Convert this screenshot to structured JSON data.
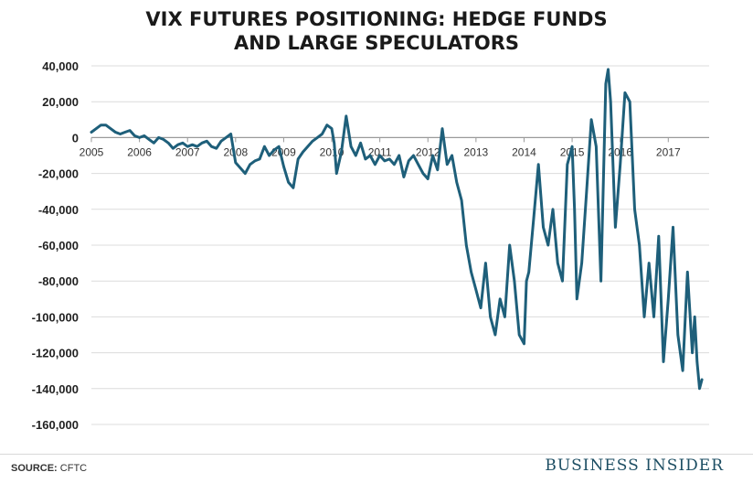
{
  "chart_data": {
    "type": "line",
    "title": [
      "VIX FUTURES POSITIONING: HEDGE FUNDS",
      "AND LARGE SPECULATORS"
    ],
    "xlabel": "",
    "ylabel": "",
    "xlim": [
      2005.0,
      2017.85
    ],
    "ylim": [
      -160000,
      40000
    ],
    "x_ticks": [
      "2005",
      "2006",
      "2007",
      "2008",
      "2009",
      "2010",
      "2011",
      "2012",
      "2013",
      "2014",
      "2015",
      "2016",
      "2017"
    ],
    "y_ticks": [
      "40,000",
      "20,000",
      "0",
      "-20,000",
      "-40,000",
      "-60,000",
      "-80,000",
      "-100,000",
      "-120,000",
      "-140,000",
      "-160,000"
    ],
    "grid": true,
    "line_color": "#1e5f7a",
    "series": [
      {
        "x": [
          2005.0,
          2005.1,
          2005.2,
          2005.3,
          2005.4,
          2005.5,
          2005.6,
          2005.7,
          2005.8,
          2005.9,
          2006.0,
          2006.1,
          2006.2,
          2006.3,
          2006.4,
          2006.5,
          2006.6,
          2006.7,
          2006.8,
          2006.9,
          2007.0,
          2007.1,
          2007.2,
          2007.3,
          2007.4,
          2007.5,
          2007.6,
          2007.7,
          2007.8,
          2007.9,
          2008.0,
          2008.1,
          2008.2,
          2008.3,
          2008.4,
          2008.5,
          2008.6,
          2008.7,
          2008.8,
          2008.9,
          2009.0,
          2009.1,
          2009.2,
          2009.3,
          2009.4,
          2009.5,
          2009.6,
          2009.7,
          2009.8,
          2009.9,
          2010.0,
          2010.05,
          2010.1,
          2010.2,
          2010.3,
          2010.4,
          2010.5,
          2010.6,
          2010.7,
          2010.8,
          2010.9,
          2011.0,
          2011.1,
          2011.2,
          2011.3,
          2011.4,
          2011.5,
          2011.6,
          2011.7,
          2011.8,
          2011.9,
          2012.0,
          2012.1,
          2012.2,
          2012.3,
          2012.4,
          2012.5,
          2012.6,
          2012.7,
          2012.8,
          2012.9,
          2013.0,
          2013.1,
          2013.2,
          2013.3,
          2013.4,
          2013.5,
          2013.6,
          2013.7,
          2013.8,
          2013.9,
          2014.0,
          2014.05,
          2014.1,
          2014.2,
          2014.3,
          2014.4,
          2014.5,
          2014.6,
          2014.7,
          2014.8,
          2014.9,
          2015.0,
          2015.05,
          2015.1,
          2015.2,
          2015.3,
          2015.4,
          2015.5,
          2015.6,
          2015.7,
          2015.75,
          2015.8,
          2015.9,
          2016.0,
          2016.1,
          2016.2,
          2016.3,
          2016.4,
          2016.5,
          2016.6,
          2016.7,
          2016.8,
          2016.9,
          2017.0,
          2017.1,
          2017.2,
          2017.3,
          2017.4,
          2017.5,
          2017.55,
          2017.6,
          2017.65,
          2017.7
        ],
        "y": [
          3000,
          5000,
          7000,
          7000,
          5000,
          3000,
          2000,
          3000,
          4000,
          1000,
          0,
          1000,
          -1000,
          -3000,
          0,
          -1000,
          -3000,
          -6000,
          -4000,
          -3000,
          -5000,
          -4000,
          -5000,
          -3000,
          -2000,
          -5000,
          -6000,
          -2000,
          0,
          2000,
          -14000,
          -17000,
          -20000,
          -15000,
          -13000,
          -12000,
          -5000,
          -10000,
          -7000,
          -5000,
          -16000,
          -25000,
          -28000,
          -12000,
          -8000,
          -5000,
          -2000,
          0,
          2000,
          7000,
          5000,
          -3000,
          -20000,
          -8000,
          12000,
          -5000,
          -10000,
          -3000,
          -12000,
          -10000,
          -15000,
          -10000,
          -13000,
          -12000,
          -15000,
          -10000,
          -22000,
          -13000,
          -10000,
          -15000,
          -20000,
          -23000,
          -10000,
          -18000,
          5000,
          -15000,
          -10000,
          -25000,
          -35000,
          -60000,
          -75000,
          -85000,
          -95000,
          -70000,
          -100000,
          -110000,
          -90000,
          -100000,
          -60000,
          -80000,
          -110000,
          -115000,
          -80000,
          -75000,
          -45000,
          -15000,
          -50000,
          -60000,
          -40000,
          -70000,
          -80000,
          -15000,
          -5000,
          -40000,
          -90000,
          -70000,
          -30000,
          10000,
          -5000,
          -80000,
          30000,
          38000,
          20000,
          -50000,
          -15000,
          25000,
          20000,
          -40000,
          -60000,
          -100000,
          -70000,
          -100000,
          -55000,
          -125000,
          -90000,
          -50000,
          -110000,
          -130000,
          -75000,
          -120000,
          -100000,
          -125000,
          -140000,
          -135000
        ]
      }
    ],
    "source_label": "SOURCE:",
    "source_value": "CFTC",
    "brand": "BUSINESS INSIDER"
  }
}
